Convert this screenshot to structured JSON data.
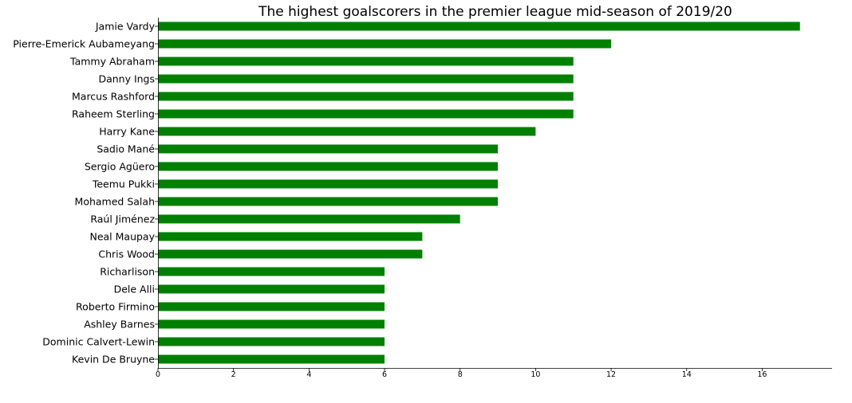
{
  "chart_data": {
    "type": "bar",
    "orientation": "horizontal",
    "title": "The highest goalscorers in the premier league mid-season of 2019/20",
    "xlabel": "",
    "ylabel": "",
    "categories": [
      "Jamie Vardy",
      "Pierre-Emerick Aubameyang",
      "Tammy Abraham",
      "Danny Ings",
      "Marcus Rashford",
      "Raheem Sterling",
      "Harry Kane",
      "Sadio Mané",
      "Sergio Agüero",
      "Teemu Pukki",
      "Mohamed Salah",
      "Raúl Jiménez",
      "Neal Maupay",
      "Chris Wood",
      "Richarlison",
      "Dele Alli",
      "Roberto Firmino",
      "Ashley Barnes",
      "Dominic Calvert-Lewin",
      "Kevin De Bruyne"
    ],
    "values": [
      17,
      12,
      11,
      11,
      11,
      11,
      10,
      9,
      9,
      9,
      9,
      8,
      7,
      7,
      6,
      6,
      6,
      6,
      6,
      6
    ],
    "xlim": [
      0,
      17.85
    ],
    "xticks": [
      0,
      2,
      4,
      6,
      8,
      10,
      12,
      14,
      16
    ],
    "bar_color": "#008000",
    "grid": false,
    "legend": "none"
  }
}
